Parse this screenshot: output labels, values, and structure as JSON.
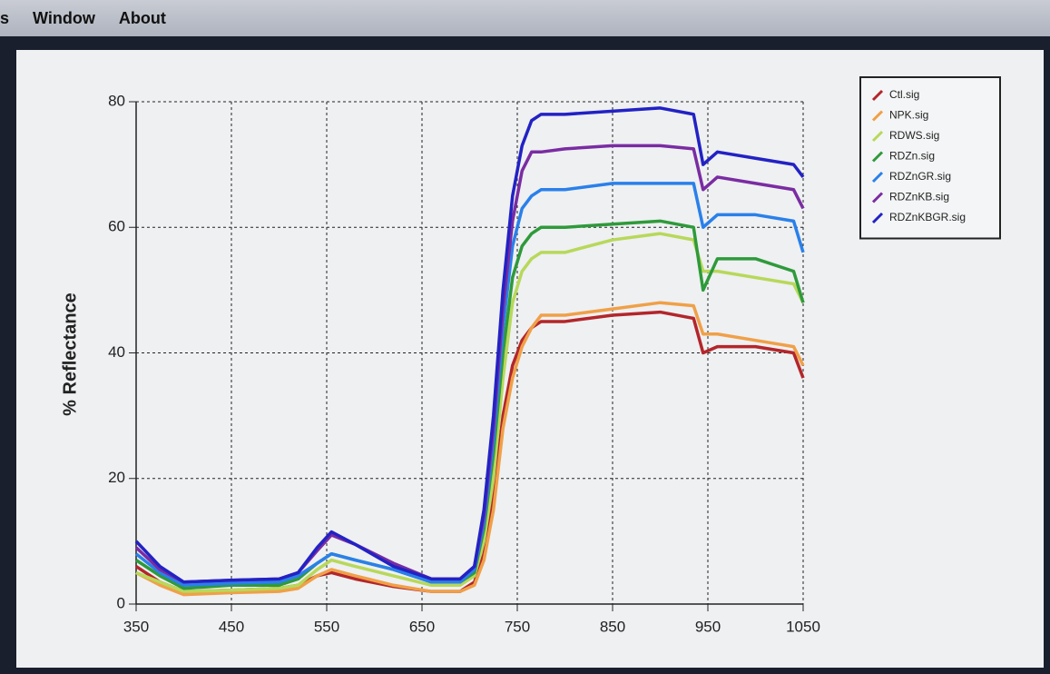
{
  "menu": [
    "s",
    "Window",
    "About"
  ],
  "chart_data": {
    "type": "line",
    "ylabel": "% Reflectance",
    "x": [
      350,
      375,
      400,
      450,
      500,
      520,
      540,
      555,
      580,
      620,
      660,
      690,
      705,
      715,
      725,
      735,
      745,
      755,
      765,
      775,
      800,
      850,
      900,
      935,
      945,
      960,
      1000,
      1040,
      1050
    ],
    "xlim": [
      350,
      1050
    ],
    "xticks": [
      350,
      450,
      550,
      650,
      750,
      850,
      950,
      1050
    ],
    "ylim": [
      0,
      80
    ],
    "yticks": [
      0,
      20,
      40,
      60,
      80
    ],
    "grid": true,
    "legend": "upper right",
    "series": [
      {
        "name": "Ctl.sig",
        "color": "#b3262a",
        "values": [
          6,
          3.5,
          2,
          2.2,
          2.5,
          3,
          4.5,
          5,
          4,
          2.8,
          2,
          2,
          3.5,
          8,
          17,
          30,
          38,
          42,
          44,
          45,
          45,
          46,
          46.5,
          45.5,
          40,
          41,
          41,
          40,
          36
        ]
      },
      {
        "name": "NPK.sig",
        "color": "#f0a048",
        "values": [
          5,
          3,
          1.5,
          1.8,
          2,
          2.5,
          4.5,
          5.5,
          4.5,
          3,
          2,
          2,
          3,
          7,
          15,
          28,
          36,
          41,
          44,
          46,
          46,
          47,
          48,
          47.5,
          43,
          43,
          42,
          41,
          38
        ]
      },
      {
        "name": "RDWS.sig",
        "color": "#b8d85a",
        "values": [
          5,
          3.5,
          2,
          2.2,
          2.5,
          3,
          5.5,
          7,
          6,
          4.5,
          3,
          3,
          4.5,
          10,
          20,
          36,
          48,
          53,
          55,
          56,
          56,
          58,
          59,
          58,
          53,
          53,
          52,
          51,
          48
        ]
      },
      {
        "name": "RDZn.sig",
        "color": "#2e9a3a",
        "values": [
          7,
          4.5,
          2.5,
          3,
          3,
          4,
          6.5,
          8,
          7,
          5.5,
          3.5,
          3.5,
          5,
          12,
          24,
          40,
          52,
          57,
          59,
          60,
          60,
          60.5,
          61,
          60,
          50,
          55,
          55,
          53,
          48
        ]
      },
      {
        "name": "RDZnGR.sig",
        "color": "#2a80ea",
        "values": [
          8,
          5,
          3,
          3.3,
          3.5,
          4.5,
          6.5,
          8,
          7,
          5.5,
          3.5,
          3.5,
          5.5,
          13,
          26,
          44,
          57,
          63,
          65,
          66,
          66,
          67,
          67,
          67,
          60,
          62,
          62,
          61,
          56
        ]
      },
      {
        "name": "RDZnKB.sig",
        "color": "#7a2ca2",
        "values": [
          9,
          5.5,
          3.5,
          3.8,
          4,
          5,
          8.5,
          11,
          9.5,
          6.5,
          4,
          4,
          6,
          14,
          28,
          47,
          61,
          69,
          72,
          72,
          72.5,
          73,
          73,
          72.5,
          66,
          68,
          67,
          66,
          63
        ]
      },
      {
        "name": "RDZnKBGR.sig",
        "color": "#2222c4",
        "values": [
          10,
          6,
          3.5,
          3.8,
          4,
          5,
          9,
          11.5,
          9.5,
          6,
          4,
          4,
          6,
          15,
          30,
          50,
          65,
          73,
          77,
          78,
          78,
          78.5,
          79,
          78,
          70,
          72,
          71,
          70,
          68
        ]
      }
    ]
  }
}
